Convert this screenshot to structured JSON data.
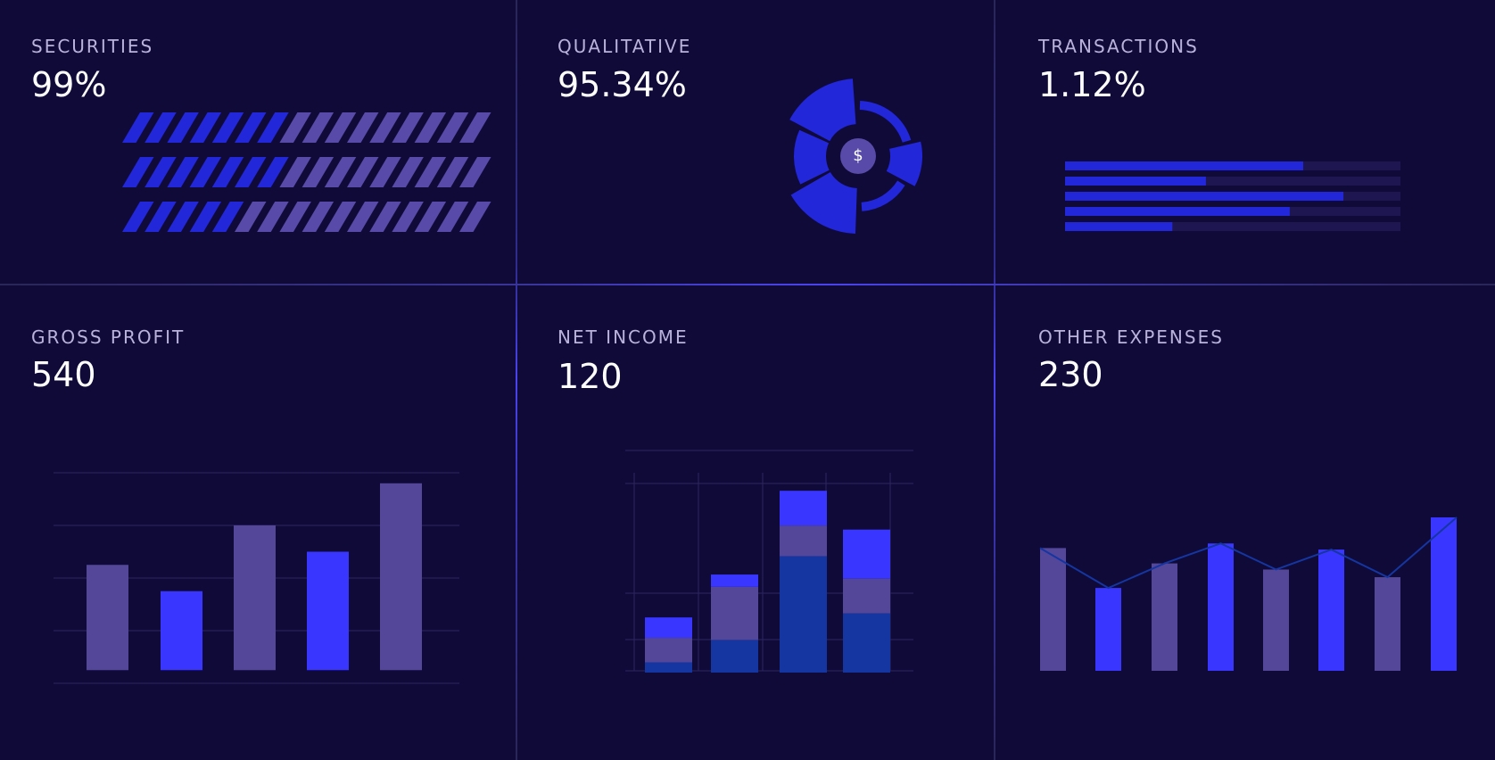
{
  "colors": {
    "background": "#100a39",
    "accent_blue": "#3937ff",
    "deep_blue": "#2227d9",
    "navy": "#1535a0",
    "purple": "#54479a",
    "muted_purple": "#574aa8",
    "track": "#1d1650",
    "grid": "#2b2660",
    "label": "#b9b3dc"
  },
  "panels": {
    "securities": {
      "label": "SECURITIES",
      "value": "99%"
    },
    "qualitative": {
      "label": "QUALITATIVE",
      "value": "95.34%",
      "center_icon": "dollar-icon",
      "center_symbol": "$"
    },
    "transactions": {
      "label": "TRANSACTIONS",
      "value": "1.12%"
    },
    "gross_profit": {
      "label": "GROSS PROFIT",
      "value": "540"
    },
    "net_income": {
      "label": "NET INCOME",
      "value": "120"
    },
    "other_expenses": {
      "label": "OTHER EXPENSES",
      "value": "230"
    }
  },
  "chart_data": [
    {
      "id": "securities",
      "type": "bar",
      "style": "striped-progress",
      "series": [
        {
          "values": [
            7,
            9
          ]
        },
        {
          "values": [
            7,
            9
          ]
        },
        {
          "values": [
            5,
            11
          ]
        }
      ],
      "total_stripes": 16
    },
    {
      "id": "qualitative",
      "type": "pie",
      "style": "segmented-radial",
      "segments": [
        {
          "start_deg": 0,
          "end_deg": 75,
          "level": "thin"
        },
        {
          "start_deg": 75,
          "end_deg": 120,
          "level": "thick"
        },
        {
          "start_deg": 120,
          "end_deg": 178,
          "level": "thin"
        },
        {
          "start_deg": 180,
          "end_deg": 242,
          "level": "full"
        },
        {
          "start_deg": 242,
          "end_deg": 296,
          "level": "thick"
        },
        {
          "start_deg": 296,
          "end_deg": 358,
          "level": "full"
        }
      ]
    },
    {
      "id": "transactions",
      "type": "bar",
      "orientation": "horizontal",
      "values": [
        0.71,
        0.42,
        0.83,
        0.67,
        0.32
      ],
      "range": [
        0,
        1
      ]
    },
    {
      "id": "gross_profit",
      "type": "bar",
      "values": [
        40,
        30,
        55,
        45,
        71
      ],
      "ylim": [
        -5,
        75
      ],
      "gridlines": [
        75,
        55,
        35,
        15,
        -5
      ],
      "bar_colors": [
        "purple",
        "accent_blue",
        "purple",
        "accent_blue",
        "purple"
      ]
    },
    {
      "id": "net_income",
      "type": "bar",
      "stacked": true,
      "ylim": [
        0,
        100
      ],
      "series": [
        {
          "color": "navy",
          "values": [
            5,
            16,
            57,
            29
          ]
        },
        {
          "color": "purple",
          "values": [
            12,
            26,
            15,
            17
          ]
        },
        {
          "color": "accent_blue",
          "values": [
            10,
            6,
            17,
            24
          ]
        }
      ]
    },
    {
      "id": "other_expenses",
      "type": "area",
      "values": [
        80,
        54,
        70,
        83,
        66,
        79,
        61,
        100
      ],
      "ylim": [
        0,
        100
      ],
      "bar_colors": [
        "purple",
        "accent_blue",
        "purple",
        "accent_blue",
        "purple",
        "accent_blue",
        "purple",
        "accent_blue"
      ]
    }
  ]
}
